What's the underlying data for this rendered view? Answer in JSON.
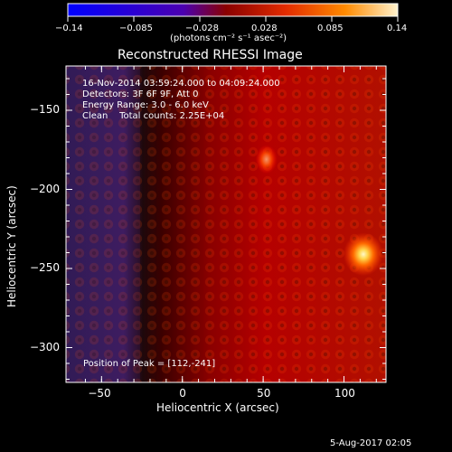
{
  "colorbar": {
    "ticks": [
      "−0.14",
      "−0.085",
      "−0.028",
      "0.028",
      "0.085",
      "0.14"
    ],
    "units": "(photons cm⁻² s⁻¹ asec⁻²)",
    "gradient": [
      "#0000ff",
      "#4b00b0",
      "#8a0000",
      "#e22b00",
      "#ff8a00",
      "#fff2cc"
    ]
  },
  "chart_data": {
    "type": "heatmap",
    "title": "Reconstructed RHESSI Image",
    "xlabel": "Heliocentric X (arcsec)",
    "ylabel": "Heliocentric Y (arcsec)",
    "xlim": [
      -72,
      126
    ],
    "ylim": [
      -322,
      -122
    ],
    "x_ticks": [
      -50,
      0,
      50,
      100
    ],
    "y_ticks": [
      -150,
      -200,
      -250,
      -300
    ],
    "color_scale": {
      "min": -0.14,
      "max": 0.14,
      "ticks": [
        -0.14,
        -0.085,
        -0.028,
        0.028,
        0.085,
        0.14
      ]
    },
    "peak": {
      "x": 112,
      "y": -241
    },
    "bright_source": {
      "x": 112,
      "y": -241
    },
    "secondary_source": {
      "x": 52,
      "y": -181
    },
    "left_background": "purple"
  },
  "annotations": {
    "time_range": "16-Nov-2014 03:59:24.000 to 04:09:24.000",
    "detectors": "Detectors: 3F 6F 9F, Att 0",
    "energy": "Energy Range: 3.0 - 6.0 keV",
    "clean": "Clean    Total counts: 2.25E+04",
    "peak_label": "Position of Peak = [112,-241]"
  },
  "footer": {
    "date": "5-Aug-2017 02:05"
  }
}
